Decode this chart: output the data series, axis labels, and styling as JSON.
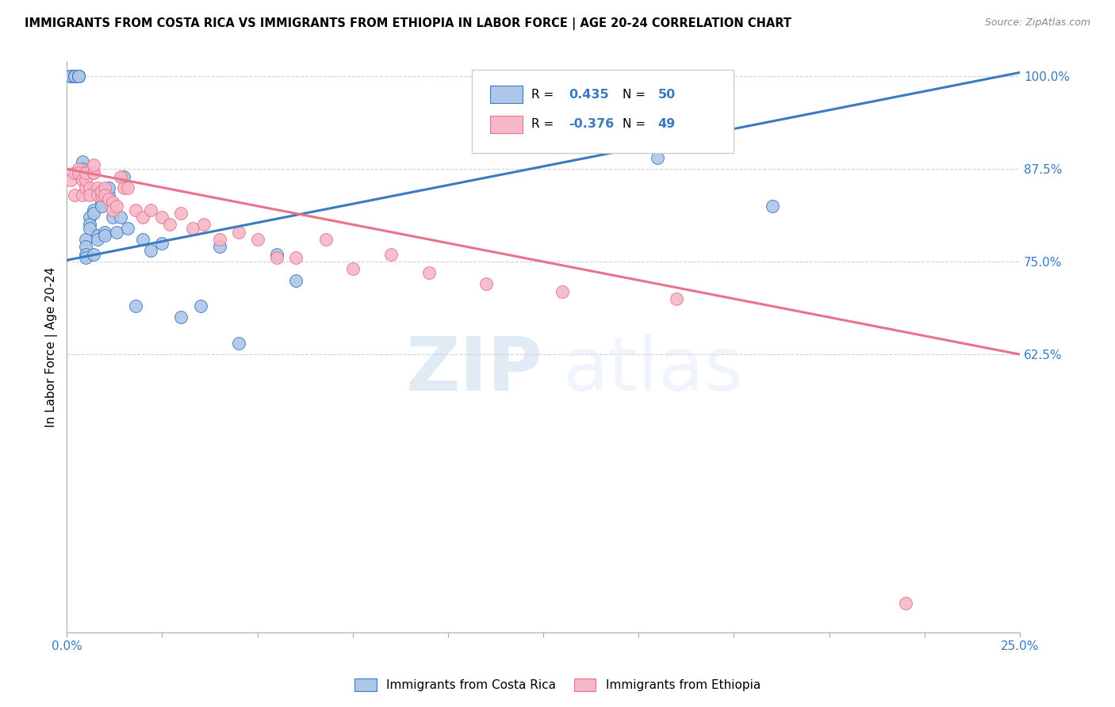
{
  "title": "IMMIGRANTS FROM COSTA RICA VS IMMIGRANTS FROM ETHIOPIA IN LABOR FORCE | AGE 20-24 CORRELATION CHART",
  "source": "Source: ZipAtlas.com",
  "ylabel": "In Labor Force | Age 20-24",
  "xlim": [
    0.0,
    0.25
  ],
  "ylim": [
    0.25,
    1.02
  ],
  "xticks": [
    0.0,
    0.025,
    0.05,
    0.075,
    0.1,
    0.125,
    0.15,
    0.175,
    0.2,
    0.225,
    0.25
  ],
  "xticklabels": [
    "0.0%",
    "",
    "",
    "",
    "",
    "",
    "",
    "",
    "",
    "",
    "25.0%"
  ],
  "ytick_positions": [
    0.625,
    0.75,
    0.875,
    1.0
  ],
  "ytick_labels": [
    "62.5%",
    "75.0%",
    "87.5%",
    "100.0%"
  ],
  "costa_rica_color": "#aec6e8",
  "ethiopia_color": "#f5b8c8",
  "trend_blue": "#3a7abf",
  "trend_pink": "#e8728a",
  "watermark_zip": "ZIP",
  "watermark_atlas": "atlas",
  "costa_rica_x": [
    0.001,
    0.001,
    0.001,
    0.001,
    0.002,
    0.002,
    0.002,
    0.002,
    0.003,
    0.003,
    0.003,
    0.003,
    0.004,
    0.004,
    0.004,
    0.005,
    0.005,
    0.005,
    0.005,
    0.006,
    0.006,
    0.006,
    0.007,
    0.007,
    0.007,
    0.008,
    0.008,
    0.009,
    0.009,
    0.01,
    0.01,
    0.011,
    0.011,
    0.012,
    0.013,
    0.014,
    0.015,
    0.016,
    0.018,
    0.02,
    0.022,
    0.025,
    0.03,
    0.035,
    0.04,
    0.045,
    0.055,
    0.06,
    0.155,
    0.185
  ],
  "costa_rica_y": [
    1.0,
    1.0,
    1.0,
    1.0,
    1.0,
    1.0,
    1.0,
    1.0,
    1.0,
    1.0,
    1.0,
    1.0,
    0.885,
    0.875,
    0.87,
    0.78,
    0.77,
    0.76,
    0.755,
    0.81,
    0.8,
    0.795,
    0.82,
    0.815,
    0.76,
    0.785,
    0.78,
    0.83,
    0.825,
    0.79,
    0.785,
    0.84,
    0.85,
    0.81,
    0.79,
    0.81,
    0.865,
    0.795,
    0.69,
    0.78,
    0.765,
    0.775,
    0.675,
    0.69,
    0.77,
    0.64,
    0.76,
    0.725,
    0.89,
    0.825
  ],
  "ethiopia_x": [
    0.001,
    0.002,
    0.002,
    0.003,
    0.003,
    0.004,
    0.004,
    0.005,
    0.005,
    0.005,
    0.006,
    0.006,
    0.007,
    0.007,
    0.007,
    0.008,
    0.008,
    0.009,
    0.009,
    0.01,
    0.01,
    0.011,
    0.012,
    0.012,
    0.013,
    0.014,
    0.015,
    0.016,
    0.018,
    0.02,
    0.022,
    0.025,
    0.027,
    0.03,
    0.033,
    0.036,
    0.04,
    0.045,
    0.05,
    0.055,
    0.06,
    0.068,
    0.075,
    0.085,
    0.095,
    0.11,
    0.13,
    0.16,
    0.22
  ],
  "ethiopia_y": [
    0.86,
    0.87,
    0.84,
    0.875,
    0.87,
    0.86,
    0.84,
    0.85,
    0.86,
    0.87,
    0.85,
    0.84,
    0.87,
    0.87,
    0.88,
    0.85,
    0.84,
    0.84,
    0.845,
    0.85,
    0.84,
    0.835,
    0.83,
    0.82,
    0.825,
    0.865,
    0.85,
    0.85,
    0.82,
    0.81,
    0.82,
    0.81,
    0.8,
    0.815,
    0.795,
    0.8,
    0.78,
    0.79,
    0.78,
    0.755,
    0.755,
    0.78,
    0.74,
    0.76,
    0.735,
    0.72,
    0.71,
    0.7,
    0.29
  ],
  "blue_trend_x0": 0.0,
  "blue_trend_y0": 0.752,
  "blue_trend_x1": 0.25,
  "blue_trend_y1": 1.005,
  "pink_trend_x0": 0.0,
  "pink_trend_y0": 0.875,
  "pink_trend_x1": 0.25,
  "pink_trend_y1": 0.625
}
